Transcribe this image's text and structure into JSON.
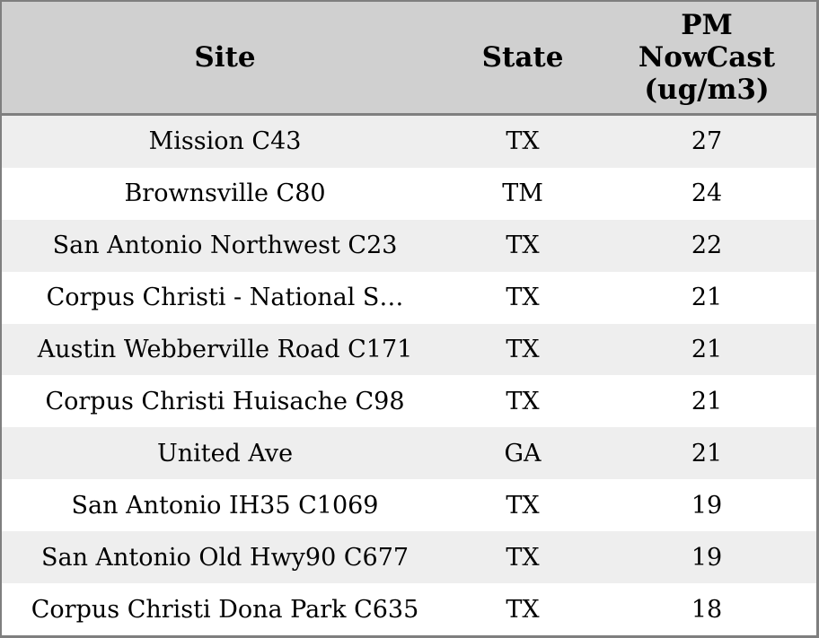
{
  "chart_data": {
    "type": "table",
    "columns": [
      {
        "id": "site",
        "label": "Site"
      },
      {
        "id": "state",
        "label": "State"
      },
      {
        "id": "pm_nowcast",
        "label": "PM NowCast (ug/m3)",
        "lines": [
          "PM",
          "NowCast",
          "(ug/m3)"
        ]
      }
    ],
    "rows": [
      {
        "site": "Mission C43",
        "state": "TX",
        "pm_nowcast": 27
      },
      {
        "site": "Brownsville C80",
        "state": "TM",
        "pm_nowcast": 24
      },
      {
        "site": "San Antonio Northwest C23",
        "state": "TX",
        "pm_nowcast": 22
      },
      {
        "site": "Corpus Christi - National S…",
        "state": "TX",
        "pm_nowcast": 21
      },
      {
        "site": "Austin Webberville Road C171",
        "state": "TX",
        "pm_nowcast": 21
      },
      {
        "site": "Corpus Christi Huisache C98",
        "state": "TX",
        "pm_nowcast": 21
      },
      {
        "site": "United Ave",
        "state": "GA",
        "pm_nowcast": 21
      },
      {
        "site": "San Antonio IH35 C1069",
        "state": "TX",
        "pm_nowcast": 19
      },
      {
        "site": "San Antonio Old Hwy90 C677",
        "state": "TX",
        "pm_nowcast": 19
      },
      {
        "site": "Corpus Christi Dona Park C635",
        "state": "TX",
        "pm_nowcast": 18
      }
    ],
    "layout": {
      "header_bg": "#d0d0d0",
      "row_alt_bg": "#eeeeee",
      "row_bg": "#ffffff",
      "border_color": "#7f7f7f",
      "text_color": "#000000",
      "sort": "pm_nowcast descending"
    }
  }
}
